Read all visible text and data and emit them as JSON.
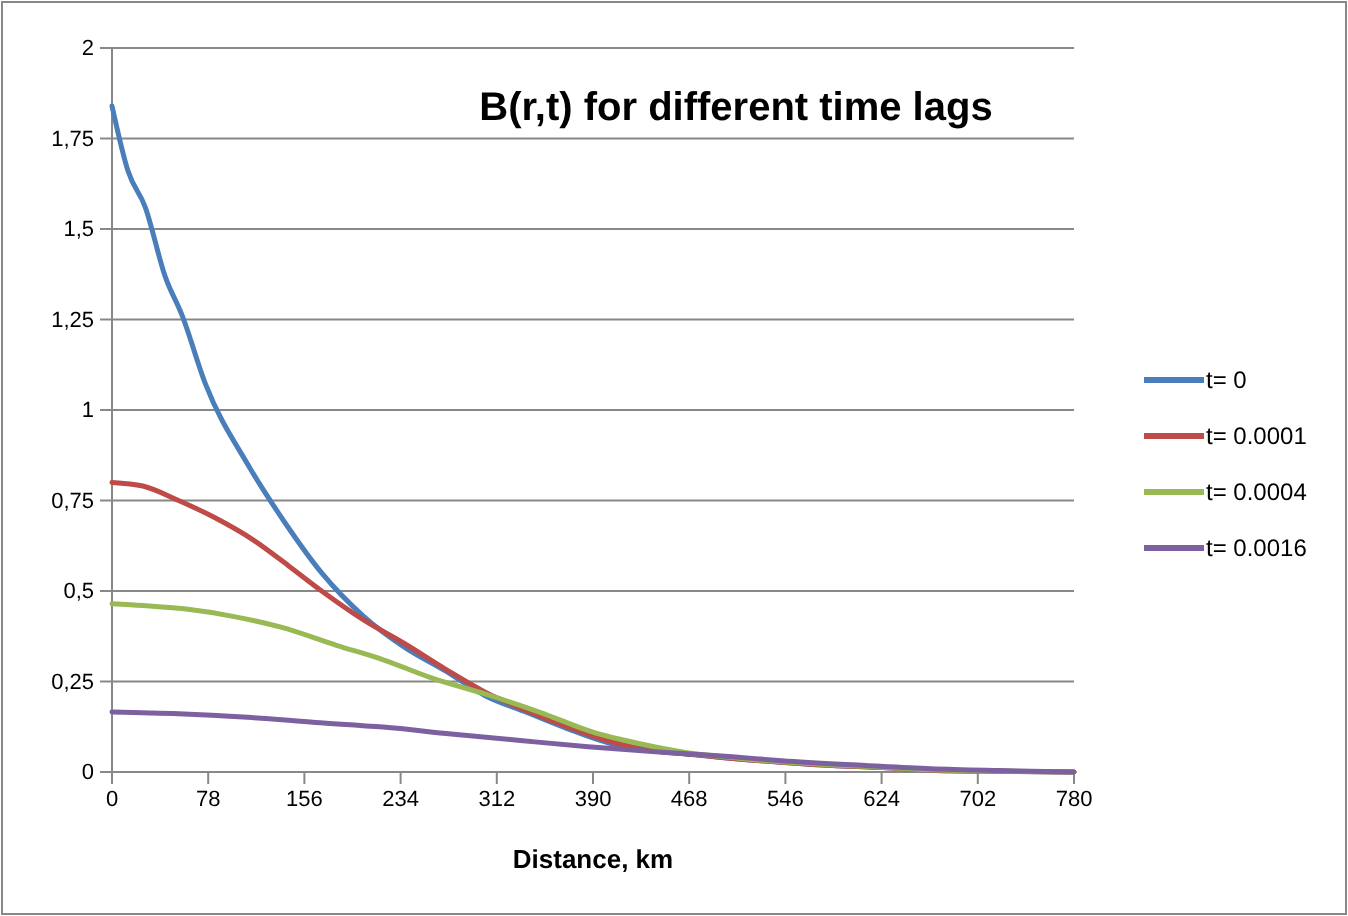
{
  "chart_data": {
    "type": "line",
    "title": "B(r,t) for different time lags",
    "xlabel": "Distance, km",
    "xlim": [
      0,
      780
    ],
    "xticks": [
      0,
      78,
      156,
      234,
      312,
      390,
      468,
      546,
      624,
      702,
      780
    ],
    "ylim": [
      0,
      2
    ],
    "yticks": [
      0,
      {
        "value": 0.25,
        "label": "0,25"
      },
      {
        "value": 0.5,
        "label": "0,5"
      },
      {
        "value": 0.75,
        "label": "0,75"
      },
      1,
      {
        "value": 1.25,
        "label": "1,25"
      },
      {
        "value": 1.5,
        "label": "1,5"
      },
      {
        "value": 1.75,
        "label": "1,75"
      },
      2
    ],
    "grid": "y",
    "legend": "right",
    "marker": "none",
    "line_style": "solid",
    "series": [
      {
        "name": "t= 0",
        "color": "#4a7ebb",
        "x": [
          0,
          13,
          27,
          43,
          57,
          76,
          110,
          140,
          170,
          204,
          237,
          270,
          303,
          336,
          369,
          403,
          436,
          470,
          508,
          543,
          584,
          621,
          664,
          718,
          780
        ],
        "values": [
          1.84,
          1.66,
          1.56,
          1.37,
          1.26,
          1.07,
          0.85,
          0.69,
          0.55,
          0.43,
          0.345,
          0.28,
          0.21,
          0.165,
          0.12,
          0.08,
          0.06,
          0.048,
          0.036,
          0.027,
          0.018,
          0.013,
          0.005,
          0.002,
          0
        ]
      },
      {
        "name": "t= 0.0001",
        "color": "#be4b48",
        "x": [
          0,
          25,
          54,
          82,
          115,
          143,
          170,
          204,
          237,
          270,
          303,
          336,
          369,
          403,
          436,
          470,
          508,
          543,
          584,
          621,
          664,
          718,
          780
        ],
        "values": [
          0.8,
          0.79,
          0.75,
          0.705,
          0.64,
          0.57,
          0.5,
          0.42,
          0.355,
          0.285,
          0.22,
          0.17,
          0.125,
          0.085,
          0.06,
          0.049,
          0.036,
          0.027,
          0.018,
          0.013,
          0.005,
          0.002,
          0
        ]
      },
      {
        "name": "t= 0.0004",
        "color": "#98b954",
        "x": [
          0,
          25,
          60,
          98,
          137,
          182,
          220,
          259,
          303,
          347,
          390,
          428,
          465,
          508,
          543,
          584,
          621,
          664,
          718,
          780
        ],
        "values": [
          0.465,
          0.46,
          0.45,
          0.43,
          0.4,
          0.35,
          0.31,
          0.26,
          0.215,
          0.165,
          0.11,
          0.078,
          0.054,
          0.038,
          0.028,
          0.019,
          0.014,
          0.006,
          0.003,
          0
        ]
      },
      {
        "name": "t= 0.0016",
        "color": "#7d60a0",
        "x": [
          0,
          54,
          110,
          165,
          220,
          275,
          331,
          386,
          449,
          503,
          543,
          611,
          664,
          718,
          780
        ],
        "values": [
          0.166,
          0.161,
          0.151,
          0.137,
          0.124,
          0.105,
          0.087,
          0.07,
          0.054,
          0.042,
          0.031,
          0.018,
          0.009,
          0.004,
          0
        ]
      }
    ]
  }
}
